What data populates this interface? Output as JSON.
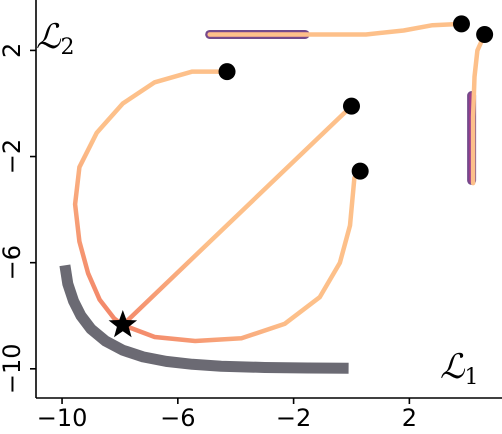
{
  "chart_data": {
    "type": "line",
    "xlabel": "ℒ",
    "xlabel_sub": "1",
    "ylabel": "ℒ",
    "ylabel_sub": "2",
    "xlim": [
      -10.9,
      5.2
    ],
    "ylim": [
      -11.1,
      3.9
    ],
    "xticks": [
      -10,
      -6,
      -2,
      2
    ],
    "yticks": [
      2,
      -2,
      -6,
      -10
    ],
    "grid": false,
    "colors": {
      "front": "#6b6a73",
      "path_light": "#fdc08a",
      "path_dark": "#f3896a",
      "marginal": "#9d3d8c",
      "marginal_edge": "#5d2b77",
      "marker": "#000000"
    },
    "front": [
      [
        -9.9,
        -6.1
      ],
      [
        -9.8,
        -6.8
      ],
      [
        -9.6,
        -7.45
      ],
      [
        -9.35,
        -8.0
      ],
      [
        -9.0,
        -8.5
      ],
      [
        -8.5,
        -8.95
      ],
      [
        -7.9,
        -9.3
      ],
      [
        -7.2,
        -9.55
      ],
      [
        -6.4,
        -9.72
      ],
      [
        -5.5,
        -9.83
      ],
      [
        -4.5,
        -9.9
      ],
      [
        -3.0,
        -9.95
      ],
      [
        -1.5,
        -9.97
      ],
      [
        -0.1,
        -9.98
      ]
    ],
    "target": [
      -7.9,
      -8.35
    ],
    "paths": [
      {
        "start": [
          -4.3,
          1.2
        ],
        "points": [
          [
            -4.3,
            1.2
          ],
          [
            -5.5,
            1.2
          ],
          [
            -6.8,
            0.8
          ],
          [
            -7.9,
            0.0
          ],
          [
            -8.8,
            -1.1
          ],
          [
            -9.4,
            -2.4
          ],
          [
            -9.55,
            -3.8
          ],
          [
            -9.4,
            -5.2
          ],
          [
            -9.1,
            -6.4
          ],
          [
            -8.7,
            -7.4
          ],
          [
            -8.2,
            -8.1
          ],
          [
            -7.9,
            -8.35
          ]
        ]
      },
      {
        "start": [
          0.0,
          -0.1
        ],
        "points": [
          [
            0.0,
            -0.1
          ],
          [
            -7.9,
            -8.35
          ]
        ]
      },
      {
        "start": [
          0.3,
          -2.55
        ],
        "points": [
          [
            0.3,
            -2.55
          ],
          [
            0.1,
            -2.8
          ],
          [
            -0.05,
            -4.6
          ],
          [
            -0.4,
            -6.0
          ],
          [
            -1.1,
            -7.3
          ],
          [
            -2.3,
            -8.3
          ],
          [
            -3.8,
            -8.85
          ],
          [
            -5.4,
            -8.95
          ],
          [
            -6.8,
            -8.8
          ],
          [
            -7.9,
            -8.35
          ]
        ]
      },
      {
        "start": [
          3.8,
          3.0
        ],
        "points": [
          [
            3.8,
            3.0
          ],
          [
            2.8,
            2.95
          ],
          [
            1.8,
            2.75
          ],
          [
            0.5,
            2.6
          ],
          [
            -1.0,
            2.6
          ],
          [
            -4.9,
            2.6
          ]
        ]
      },
      {
        "start": [
          4.6,
          2.6
        ],
        "points": [
          [
            4.6,
            2.6
          ],
          [
            4.35,
            2.0
          ],
          [
            4.25,
            1.0
          ],
          [
            4.2,
            -0.5
          ],
          [
            4.2,
            -3.0
          ]
        ]
      }
    ],
    "marginals": [
      {
        "orientation": "horizontal",
        "from": [
          -4.9,
          2.6
        ],
        "to": [
          -1.6,
          2.6
        ]
      },
      {
        "orientation": "vertical",
        "from": [
          4.15,
          0.3
        ],
        "to": [
          4.15,
          -2.9
        ]
      }
    ]
  }
}
